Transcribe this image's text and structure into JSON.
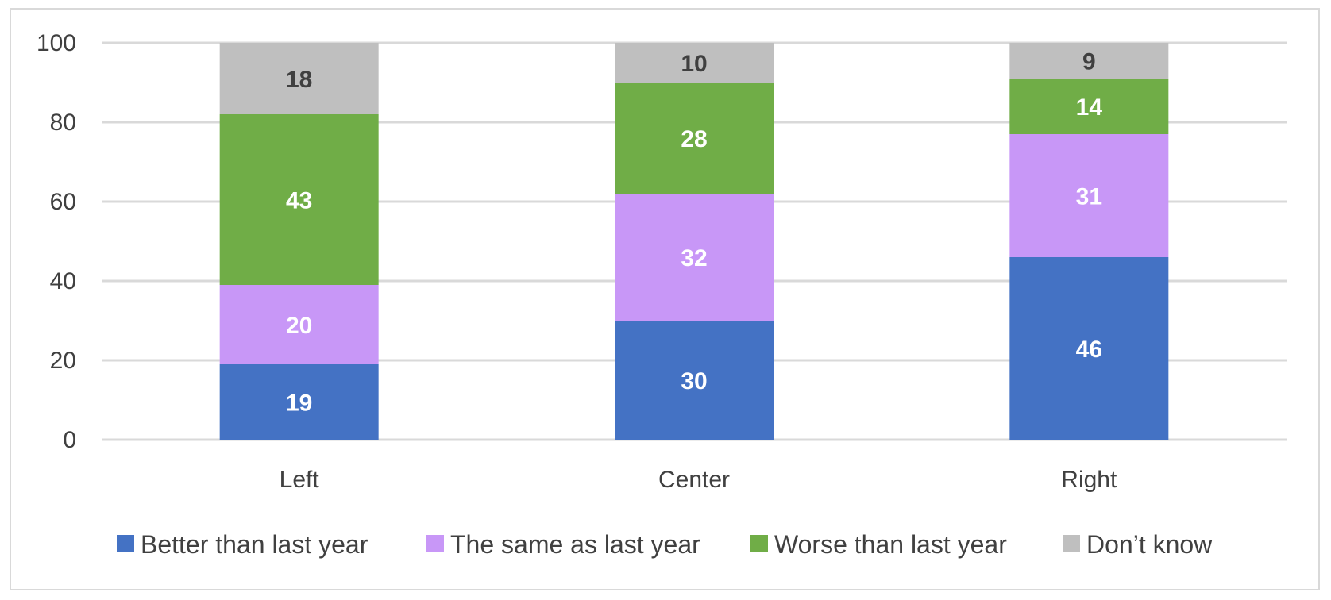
{
  "chart_data": {
    "type": "bar",
    "stacked": true,
    "categories": [
      "Left",
      "Center",
      "Right"
    ],
    "series": [
      {
        "name": "Better than last year",
        "color": "#4472c4",
        "label_color": "#ffffff",
        "values": [
          19,
          30,
          46
        ]
      },
      {
        "name": "The same as last year",
        "color": "#c897f7",
        "label_color": "#ffffff",
        "values": [
          20,
          32,
          31
        ]
      },
      {
        "name": "Worse than last year",
        "color": "#70ad47",
        "label_color": "#ffffff",
        "values": [
          43,
          28,
          14
        ]
      },
      {
        "name": "Don’t know",
        "color": "#bfbfbf",
        "label_color": "#404040",
        "values": [
          18,
          10,
          9
        ]
      }
    ],
    "yticks": [
      0,
      20,
      40,
      60,
      80,
      100
    ],
    "ylim": [
      0,
      100
    ],
    "grid": true,
    "legend_position": "bottom",
    "title": "",
    "xlabel": "",
    "ylabel": ""
  }
}
